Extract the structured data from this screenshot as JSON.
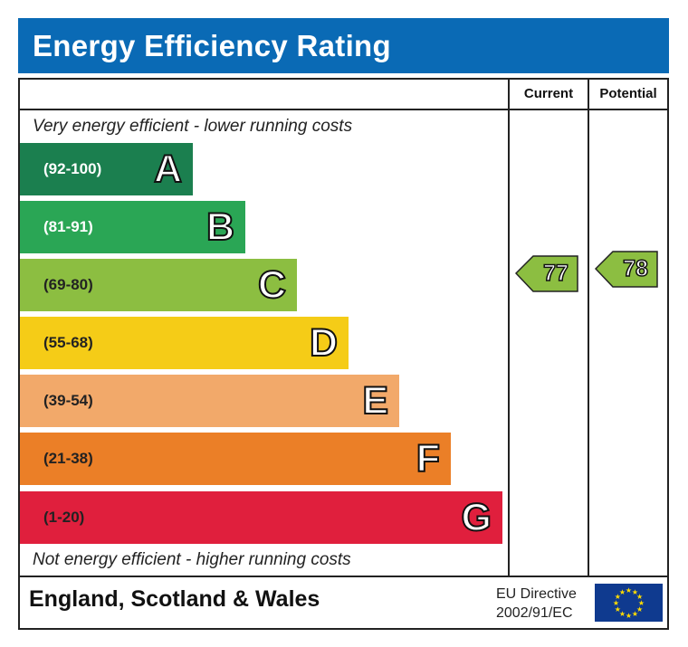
{
  "chart_data": {
    "type": "bar",
    "title": "Energy Efficiency Rating",
    "columns": [
      "Current",
      "Potential"
    ],
    "top_note": "Very energy efficient - lower running costs",
    "bottom_note": "Not energy efficient - higher running costs",
    "bands": [
      {
        "letter": "A",
        "range": "(92-100)",
        "color": "#1b7f4f",
        "range_color": "#ffffff"
      },
      {
        "letter": "B",
        "range": "(81-91)",
        "color": "#2aa655",
        "range_color": "#ffffff"
      },
      {
        "letter": "C",
        "range": "(69-80)",
        "color": "#8cbe41",
        "range_color": "#222222"
      },
      {
        "letter": "D",
        "range": "(55-68)",
        "color": "#f5cc17",
        "range_color": "#222222"
      },
      {
        "letter": "E",
        "range": "(39-54)",
        "color": "#f2a96a",
        "range_color": "#222222"
      },
      {
        "letter": "F",
        "range": "(21-38)",
        "color": "#eb7f27",
        "range_color": "#222222"
      },
      {
        "letter": "G",
        "range": "(1-20)",
        "color": "#e01f3d",
        "range_color": "#222222"
      }
    ],
    "current": {
      "value": "77",
      "band": "C",
      "color": "#8cbe41"
    },
    "potential": {
      "value": "78",
      "band": "C",
      "color": "#8cbe41"
    }
  },
  "footer": {
    "country": "England, Scotland & Wales",
    "directive_line1": "EU Directive",
    "directive_line2": "2002/91/EC"
  },
  "icons": {
    "flag": "eu-flag-icon"
  }
}
